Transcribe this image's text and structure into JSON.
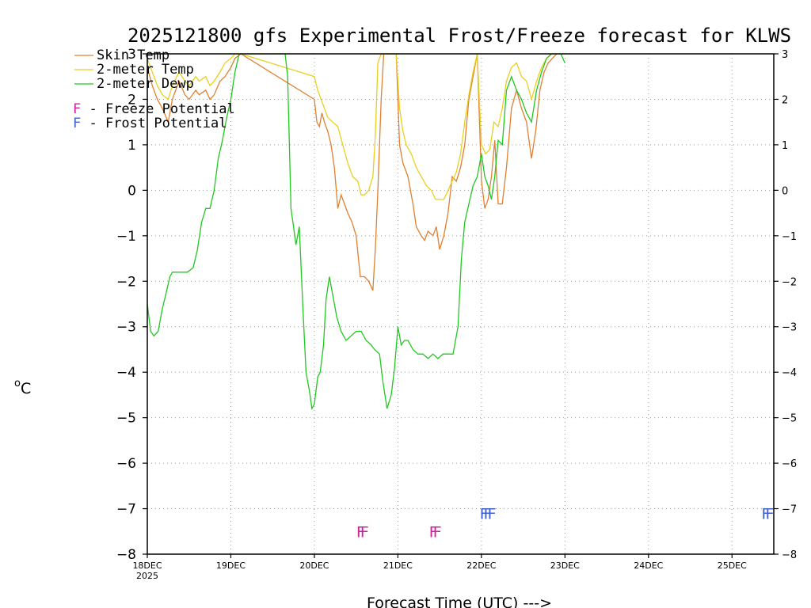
{
  "chart_data": {
    "type": "line",
    "title": "2025121800 gfs Experimental Frost/Freeze forecast for KLWS",
    "ylabel": "°C",
    "ylabel_sup": "o",
    "ylabel_unit": "C",
    "xlabel": "Forecast Time (UTC) --->",
    "ylim": [
      -8,
      3
    ],
    "xlim": [
      0,
      7.5
    ],
    "x_units": "days since 18DEC2025 00UTC",
    "y_ticks": [
      3,
      2,
      1,
      0,
      -1,
      -2,
      -3,
      -4,
      -5,
      -6,
      -7,
      -8
    ],
    "y_tick_labels": [
      "3",
      "2",
      "1",
      "0",
      "−1",
      "−2",
      "−3",
      "−4",
      "−5",
      "−6",
      "−7",
      "−8"
    ],
    "x_ticks": [
      0,
      1,
      2,
      3,
      4,
      5,
      6,
      7
    ],
    "x_tick_labels": [
      "18DEC",
      "19DEC",
      "20DEC",
      "21DEC",
      "22DEC",
      "23DEC",
      "24DEC",
      "25DEC"
    ],
    "x_sub_label": "2025",
    "grid": true,
    "legend": [
      {
        "name": "Skin Temp",
        "color": "#e08030"
      },
      {
        "name": "2-meter Temp",
        "color": "#e8d020"
      },
      {
        "name": "2-meter Dewp",
        "color": "#20c820"
      }
    ],
    "legend_symbols": [
      {
        "symbol": "F",
        "text": " - Freeze Potential",
        "color": "#d020a0"
      },
      {
        "symbol": "F",
        "text": " - Frost Potential",
        "color": "#4060d0"
      }
    ],
    "series": [
      {
        "name": "Skin Temp",
        "color": "#e08030",
        "x": [
          0,
          0.06,
          0.12,
          0.18,
          0.25,
          0.3,
          0.38,
          0.45,
          0.5,
          0.58,
          0.62,
          0.7,
          0.75,
          0.8,
          0.87,
          0.93,
          1.0,
          1.05,
          1.12,
          2.0,
          2.03,
          2.06,
          2.09,
          2.12,
          2.16,
          2.2,
          2.24,
          2.28,
          2.32,
          2.36,
          2.4,
          2.45,
          2.5,
          2.55,
          2.6,
          2.65,
          2.7,
          2.73,
          2.76,
          2.8,
          2.83,
          2.86,
          2.9,
          2.94,
          2.98,
          3.02,
          3.06,
          3.12,
          3.18,
          3.22,
          3.28,
          3.32,
          3.36,
          3.42,
          3.46,
          3.5,
          3.55,
          3.6,
          3.65,
          3.7,
          3.75,
          3.8,
          3.85,
          3.9,
          3.95,
          4.0,
          4.04,
          4.08,
          4.12,
          4.16,
          4.2,
          4.25,
          4.3,
          4.36,
          4.42,
          4.48,
          4.54,
          4.6,
          4.65,
          4.7,
          4.75,
          4.8,
          4.85,
          4.9,
          4.95,
          5.0
        ],
        "values": [
          2.7,
          2.3,
          2.0,
          1.8,
          1.5,
          2.0,
          2.4,
          2.1,
          2.0,
          2.2,
          2.1,
          2.2,
          2.0,
          2.1,
          2.4,
          2.5,
          2.7,
          2.9,
          3.0,
          2.0,
          1.5,
          1.4,
          1.7,
          1.5,
          1.3,
          1.0,
          0.5,
          -0.4,
          -0.1,
          -0.3,
          -0.5,
          -0.7,
          -1.0,
          -1.9,
          -1.9,
          -2.0,
          -2.2,
          -1.3,
          0.0,
          2.0,
          3.0,
          3.0,
          3.0,
          3.0,
          3.0,
          1.0,
          0.6,
          0.3,
          -0.3,
          -0.8,
          -1.0,
          -1.1,
          -0.9,
          -1.0,
          -0.8,
          -1.3,
          -1.0,
          -0.5,
          0.3,
          0.2,
          0.5,
          1.0,
          2.0,
          2.5,
          3.0,
          0.2,
          -0.4,
          -0.2,
          0.3,
          1.1,
          -0.3,
          -0.3,
          0.5,
          1.8,
          2.2,
          1.8,
          1.5,
          0.7,
          1.3,
          2.2,
          2.6,
          2.8,
          2.9,
          3.0,
          3.0,
          3.0
        ]
      },
      {
        "name": "2-meter Temp",
        "color": "#e8d020",
        "x": [
          0,
          0.06,
          0.12,
          0.18,
          0.25,
          0.3,
          0.38,
          0.45,
          0.5,
          0.58,
          0.62,
          0.7,
          0.75,
          0.8,
          0.87,
          0.93,
          1.0,
          1.05,
          1.12,
          2.0,
          2.04,
          2.08,
          2.12,
          2.16,
          2.22,
          2.28,
          2.34,
          2.4,
          2.46,
          2.52,
          2.56,
          2.6,
          2.65,
          2.7,
          2.73,
          2.76,
          2.8,
          2.83,
          2.86,
          2.9,
          2.94,
          2.98,
          3.02,
          3.06,
          3.1,
          3.16,
          3.22,
          3.28,
          3.34,
          3.4,
          3.45,
          3.5,
          3.55,
          3.6,
          3.65,
          3.7,
          3.75,
          3.8,
          3.85,
          3.9,
          3.95,
          4.0,
          4.05,
          4.1,
          4.15,
          4.2,
          4.25,
          4.3,
          4.36,
          4.42,
          4.48,
          4.54,
          4.6,
          4.66,
          4.72,
          4.78,
          4.84,
          4.9,
          4.95,
          5.0
        ],
        "values": [
          2.9,
          2.6,
          2.3,
          2.1,
          2.0,
          2.3,
          2.6,
          2.4,
          2.3,
          2.5,
          2.4,
          2.5,
          2.3,
          2.4,
          2.6,
          2.8,
          2.9,
          3.0,
          3.0,
          2.5,
          2.2,
          2.0,
          1.8,
          1.6,
          1.5,
          1.4,
          1.0,
          0.6,
          0.3,
          0.2,
          -0.1,
          -0.1,
          0.0,
          0.3,
          1.2,
          2.8,
          3.0,
          3.0,
          3.0,
          3.0,
          3.0,
          3.0,
          1.8,
          1.3,
          1.0,
          0.8,
          0.5,
          0.3,
          0.1,
          0.0,
          -0.2,
          -0.2,
          -0.2,
          0.0,
          0.2,
          0.4,
          0.8,
          1.5,
          2.1,
          2.6,
          3.0,
          1.0,
          0.8,
          0.9,
          1.5,
          1.4,
          1.8,
          2.4,
          2.7,
          2.8,
          2.5,
          2.4,
          2.0,
          2.4,
          2.7,
          2.9,
          3.0,
          3.0,
          3.0,
          3.0
        ]
      },
      {
        "name": "2-meter Dewp",
        "color": "#20c820",
        "x": [
          0,
          0.04,
          0.08,
          0.13,
          0.18,
          0.22,
          0.27,
          0.3,
          0.36,
          0.42,
          0.48,
          0.55,
          0.6,
          0.65,
          0.7,
          0.75,
          0.8,
          0.85,
          0.9,
          0.95,
          1.0,
          1.05,
          1.1,
          1.15,
          1.2,
          1.25,
          1.3,
          1.35,
          1.4,
          1.45,
          1.5,
          1.55,
          1.6,
          1.65,
          1.68,
          1.72,
          1.75,
          1.78,
          1.82,
          1.86,
          1.9,
          1.94,
          1.97,
          2.0,
          2.04,
          2.07,
          2.11,
          2.14,
          2.18,
          2.22,
          2.27,
          2.32,
          2.38,
          2.44,
          2.5,
          2.56,
          2.62,
          2.68,
          2.72,
          2.78,
          2.82,
          2.87,
          2.92,
          2.96,
          3.0,
          3.04,
          3.08,
          3.12,
          3.18,
          3.24,
          3.3,
          3.36,
          3.42,
          3.48,
          3.54,
          3.6,
          3.66,
          3.72,
          3.76,
          3.8,
          3.85,
          3.9,
          3.95,
          4.0,
          4.04,
          4.08,
          4.12,
          4.16,
          4.2,
          4.25,
          4.3,
          4.36,
          4.42,
          4.48,
          4.54,
          4.6,
          4.66,
          4.72,
          4.78,
          4.84,
          4.9,
          4.95,
          5.0
        ],
        "values": [
          -2.5,
          -3.1,
          -3.2,
          -3.1,
          -2.6,
          -2.3,
          -1.9,
          -1.8,
          -1.8,
          -1.8,
          -1.8,
          -1.7,
          -1.3,
          -0.7,
          -0.4,
          -0.4,
          0.0,
          0.7,
          1.1,
          1.6,
          2.0,
          2.6,
          3.0,
          3.0,
          3.0,
          3.0,
          3.0,
          3.0,
          3.0,
          3.0,
          3.0,
          3.0,
          3.0,
          3.0,
          2.5,
          -0.4,
          -0.8,
          -1.2,
          -0.8,
          -2.5,
          -4.0,
          -4.4,
          -4.8,
          -4.7,
          -4.1,
          -4.0,
          -3.4,
          -2.4,
          -1.9,
          -2.3,
          -2.8,
          -3.1,
          -3.3,
          -3.2,
          -3.1,
          -3.1,
          -3.3,
          -3.4,
          -3.5,
          -3.6,
          -4.2,
          -4.8,
          -4.5,
          -3.9,
          -3.0,
          -3.4,
          -3.3,
          -3.3,
          -3.5,
          -3.6,
          -3.6,
          -3.7,
          -3.6,
          -3.7,
          -3.6,
          -3.6,
          -3.6,
          -3.0,
          -1.5,
          -0.7,
          -0.3,
          0.1,
          0.3,
          0.8,
          0.3,
          0.1,
          -0.2,
          0.3,
          1.1,
          1.0,
          2.2,
          2.5,
          2.2,
          2.0,
          1.7,
          1.5,
          2.2,
          2.6,
          2.9,
          3.0,
          3.0,
          3.0,
          2.8
        ]
      }
    ],
    "annotations": [
      {
        "label": "FF",
        "x": 2.55,
        "y": -7.5,
        "color": "#d020a0",
        "type": "freeze"
      },
      {
        "label": "FF",
        "x": 3.42,
        "y": -7.5,
        "color": "#d020a0",
        "type": "freeze"
      },
      {
        "label": "FFF",
        "x": 4.05,
        "y": -7.1,
        "color": "#4060d0",
        "type": "frost"
      },
      {
        "label": "FF",
        "x": 7.4,
        "y": -7.1,
        "color": "#4060d0",
        "type": "frost"
      }
    ]
  }
}
